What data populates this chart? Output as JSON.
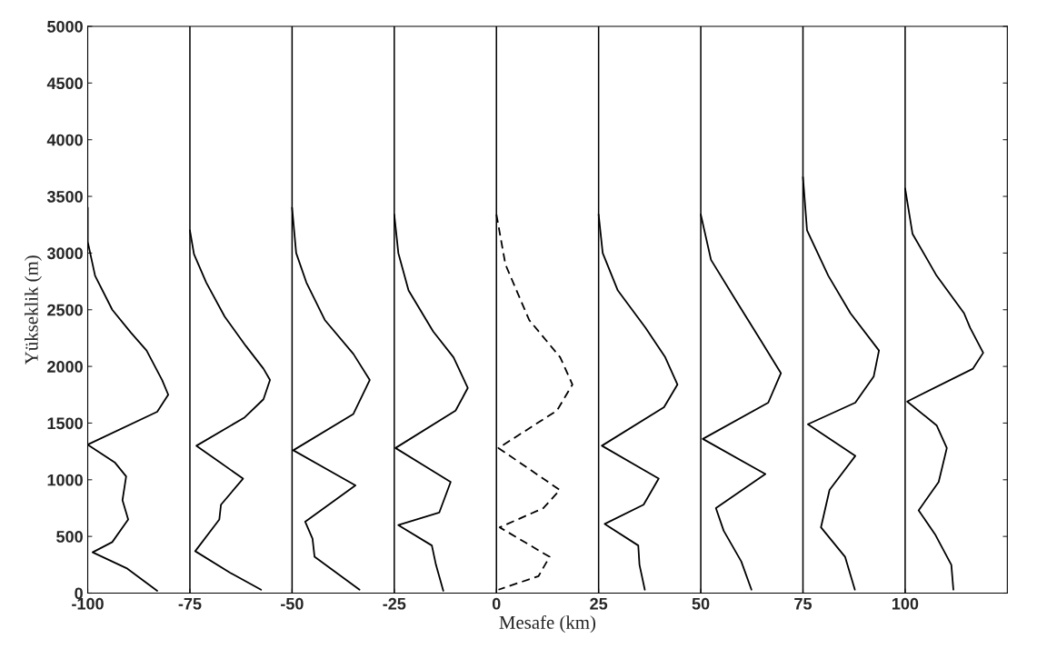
{
  "chart_data": {
    "type": "line",
    "xlabel": "Mesafe (km)",
    "ylabel": "Yükseklik (m)",
    "xlim": [
      -100,
      125
    ],
    "ylim": [
      0,
      5000
    ],
    "xticks": [
      -100,
      -75,
      -50,
      -25,
      0,
      25,
      50,
      75,
      100
    ],
    "yticks": [
      0,
      500,
      1000,
      1500,
      2000,
      2500,
      3000,
      3500,
      4000,
      4500,
      5000
    ],
    "grid": false,
    "ref_lines": [
      {
        "axis": "x",
        "value": -75,
        "color": "#000000"
      },
      {
        "axis": "x",
        "value": -50,
        "color": "#000000"
      },
      {
        "axis": "x",
        "value": -25,
        "color": "#000000"
      },
      {
        "axis": "x",
        "value": 0,
        "color": "#000000"
      },
      {
        "axis": "x",
        "value": 25,
        "color": "#000000"
      },
      {
        "axis": "x",
        "value": 50,
        "color": "#000000"
      },
      {
        "axis": "x",
        "value": 75,
        "color": "#000000"
      },
      {
        "axis": "x",
        "value": 100,
        "color": "#000000"
      }
    ],
    "series": [
      {
        "color": "#000000",
        "line_style": "solid",
        "x": [
          -100,
          -100,
          -98.2,
          -94,
          -89.5,
          -85.6,
          -81.8,
          -80.3,
          -83,
          -100,
          -93.3,
          -90.6,
          -91.5,
          -90.1,
          -94,
          -98.8,
          -90.5,
          -83
        ],
        "values": [
          3400,
          3100,
          2800,
          2500,
          2300,
          2140,
          1880,
          1750,
          1600,
          1310,
          1150,
          1030,
          820,
          650,
          450,
          360,
          220,
          20
        ]
      },
      {
        "color": "#000000",
        "line_style": "solid",
        "x": [
          -75,
          -74,
          -71,
          -66.5,
          -61.3,
          -57,
          -55.4,
          -57,
          -61.6,
          -73.4,
          -62,
          -67.4,
          -67.8,
          -73.7,
          -65.2,
          -57.6
        ],
        "values": [
          3200,
          2990,
          2740,
          2440,
          2180,
          1980,
          1880,
          1710,
          1550,
          1300,
          1010,
          780,
          650,
          370,
          180,
          30
        ]
      },
      {
        "color": "#000000",
        "line_style": "solid",
        "x": [
          -50,
          -49,
          -46.5,
          -42,
          -35,
          -31,
          -35,
          -49.7,
          -34.5,
          -46.8,
          -45,
          -44.5,
          -33.5
        ],
        "values": [
          3400,
          3000,
          2740,
          2410,
          2110,
          1880,
          1580,
          1260,
          950,
          630,
          480,
          320,
          30
        ]
      },
      {
        "color": "#000000",
        "line_style": "solid",
        "x": [
          -25,
          -24,
          -21.5,
          -15.5,
          -10.5,
          -7,
          -10,
          -24.7,
          -11.2,
          -14,
          -24,
          -15.8,
          -14.8,
          -13
        ],
        "values": [
          3340,
          3000,
          2670,
          2310,
          2080,
          1810,
          1610,
          1280,
          980,
          710,
          600,
          420,
          250,
          20
        ]
      },
      {
        "color": "#000000",
        "line_style": "dashed",
        "x": [
          0,
          2.2,
          8,
          15.6,
          18.6,
          14.8,
          0.5,
          15.5,
          11.5,
          0.8,
          13,
          10.3,
          0.5
        ],
        "values": [
          3340,
          2900,
          2410,
          2080,
          1840,
          1610,
          1280,
          910,
          750,
          580,
          320,
          150,
          30
        ]
      },
      {
        "color": "#000000",
        "line_style": "solid",
        "x": [
          25,
          26,
          29.7,
          36.5,
          41.3,
          44.3,
          41,
          25.8,
          39.7,
          36,
          26.5,
          34.7,
          35,
          36.3
        ],
        "values": [
          3340,
          3000,
          2670,
          2340,
          2080,
          1840,
          1640,
          1300,
          1010,
          780,
          610,
          420,
          250,
          30
        ]
      },
      {
        "color": "#000000",
        "line_style": "solid",
        "x": [
          50,
          52.5,
          58.8,
          64.5,
          69.6,
          66.5,
          50.5,
          65.8,
          53.7,
          55.6,
          59.9,
          62.4
        ],
        "values": [
          3340,
          2940,
          2570,
          2240,
          1940,
          1680,
          1360,
          1050,
          750,
          550,
          280,
          30
        ]
      },
      {
        "color": "#000000",
        "line_style": "solid",
        "x": [
          75,
          76,
          81.2,
          86.6,
          93.6,
          92.3,
          87.8,
          76.2,
          87.8,
          81.5,
          79.4,
          85.3,
          87.7
        ],
        "values": [
          3670,
          3200,
          2800,
          2470,
          2140,
          1910,
          1680,
          1490,
          1210,
          910,
          580,
          320,
          30
        ]
      },
      {
        "color": "#000000",
        "line_style": "solid",
        "x": [
          100,
          101.8,
          107.7,
          114.4,
          115.9,
          119.1,
          116.6,
          100.5,
          107.7,
          110.2,
          108.2,
          103.3,
          107.3,
          111.3,
          111.8
        ],
        "values": [
          3570,
          3170,
          2800,
          2470,
          2340,
          2120,
          1980,
          1690,
          1480,
          1280,
          980,
          730,
          520,
          250,
          30
        ]
      }
    ]
  }
}
